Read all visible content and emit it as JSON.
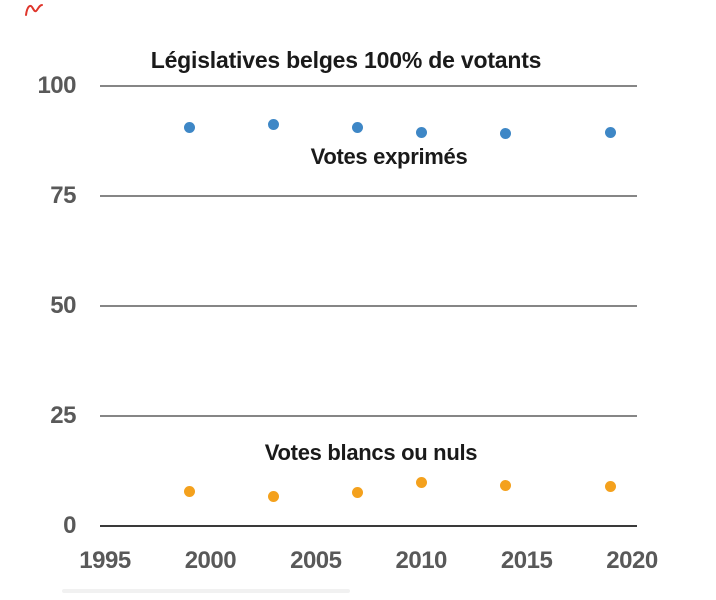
{
  "chart_data": {
    "type": "scatter",
    "title": "Législatives belges 100% de votants",
    "x": [
      1999,
      2003,
      2007,
      2010,
      2014,
      2019
    ],
    "series": [
      {
        "name": "Votes exprimés",
        "color": "#3e87c6",
        "values": [
          90.5,
          91.2,
          90.6,
          89.4,
          89.2,
          89.5
        ]
      },
      {
        "name": "Votes blancs ou nuls",
        "color": "#f4a11d",
        "values": [
          7.9,
          6.8,
          7.6,
          9.8,
          9.2,
          8.9
        ]
      }
    ],
    "x_ticks": [
      1995,
      2000,
      2005,
      2010,
      2015,
      2020
    ],
    "y_ticks": [
      100,
      75,
      50,
      25,
      0
    ],
    "xlim": [
      1995,
      2020
    ],
    "ylim": [
      0,
      100
    ],
    "grid": true,
    "legend_position": "inline-labels-near-series"
  },
  "colors": {
    "series_blue": "#3e87c6",
    "series_orange": "#f4a11d",
    "gridline": "#868686",
    "axis_line": "#3a3a3a",
    "tick_label": "#595959",
    "label_text": "#1a1a1a",
    "annotation_red": "#df362c",
    "background": "#ffffff"
  }
}
